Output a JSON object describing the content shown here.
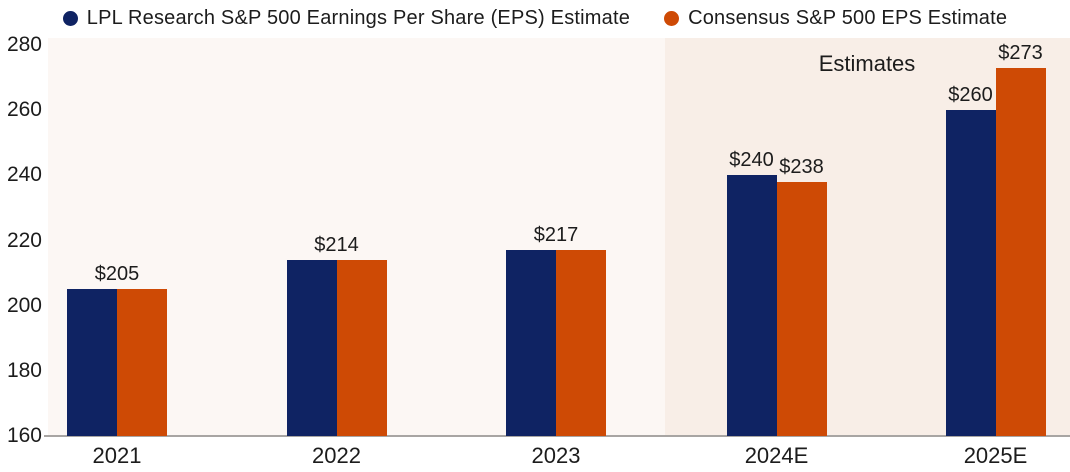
{
  "legend": {
    "items": [
      {
        "name": "LPL Research S&P 500 Earnings Per Share (EPS) Estimate",
        "color": "#0f2363"
      },
      {
        "name": "Consensus S&P 500 EPS Estimate",
        "color": "#ce4a05"
      }
    ]
  },
  "chart_data": {
    "type": "bar",
    "title": "",
    "categories": [
      "2021",
      "2022",
      "2023",
      "2024E",
      "2025E"
    ],
    "series": [
      {
        "name": "LPL Research S&P 500 Earnings Per Share (EPS) Estimate",
        "color": "#0f2363",
        "values": [
          205,
          214,
          217,
          240,
          260
        ]
      },
      {
        "name": "Consensus S&P 500 EPS Estimate",
        "color": "#ce4a05",
        "values": [
          205,
          214,
          217,
          238,
          273
        ]
      }
    ],
    "bar_labels": [
      {
        "shared": "$205"
      },
      {
        "shared": "$214"
      },
      {
        "shared": "$217"
      },
      {
        "lpl": "$240",
        "consensus": "$238"
      },
      {
        "lpl": "$260",
        "consensus": "$273"
      }
    ],
    "ylim": [
      160,
      280
    ],
    "yticks": [
      280,
      260,
      240,
      220,
      200,
      180,
      160
    ],
    "xlabel": "",
    "ylabel": "",
    "grid": false,
    "legend_position": "top",
    "estimates_region": {
      "starts_at_category": "2024E",
      "label": "Estimates"
    }
  },
  "colors": {
    "navy": "#0f2363",
    "orange": "#ce4a05",
    "plot_bg": "#fcf7f4",
    "estimates_bg": "#f8eee7",
    "axis_line": "#a8a5a3",
    "text": "#1c1c1c",
    "page_bg": "#ffffff"
  }
}
